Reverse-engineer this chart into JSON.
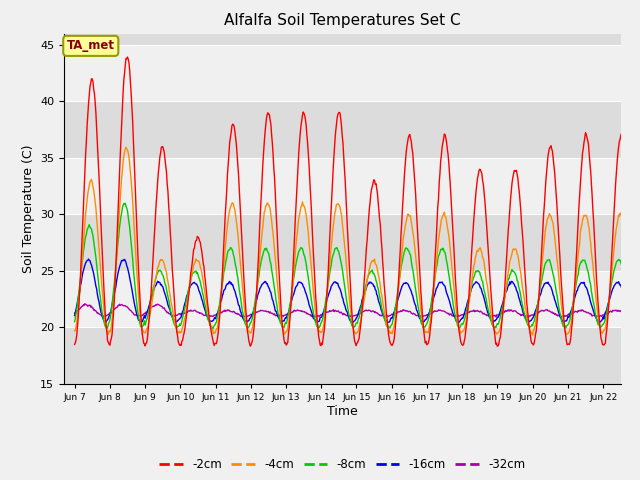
{
  "title": "Alfalfa Soil Temperatures Set C",
  "xlabel": "Time",
  "ylabel": "Soil Temperature (C)",
  "ylim": [
    15,
    46
  ],
  "yticks": [
    15,
    20,
    25,
    30,
    35,
    40,
    45
  ],
  "legend_label": "TA_met",
  "legend_box_color": "#FFFF99",
  "legend_box_edge": "#999900",
  "bg_color": "#F0F0F0",
  "plot_bg_color": "#F0F0F0",
  "band_color_dark": "#DCDCDC",
  "band_color_light": "#F0F0F0",
  "grid_color": "#FFFFFF",
  "line_colors": {
    "-2cm": "#FF0000",
    "-4cm": "#FF8C00",
    "-8cm": "#00CC00",
    "-16cm": "#0000EE",
    "-32cm": "#AA00AA"
  },
  "xtick_labels": [
    "Jun 7",
    "Jun 8",
    "Jun 9",
    "Jun 10",
    "Jun 11",
    "Jun 12",
    "Jun 13",
    "Jun 14",
    "Jun 15",
    "Jun 16",
    "Jun 17",
    "Jun 18",
    "Jun 19",
    "Jun 20",
    "Jun 21",
    "Jun 22"
  ],
  "n_days": 16,
  "pts_per_day": 48,
  "peaks_2cm": [
    42,
    44,
    36,
    28,
    38,
    39,
    39,
    39,
    33,
    37,
    37,
    34,
    34,
    36,
    37,
    37
  ],
  "peaks_4cm": [
    33,
    36,
    26,
    26,
    31,
    31,
    31,
    31,
    26,
    30,
    30,
    27,
    27,
    30,
    30,
    30
  ],
  "peaks_8cm": [
    29,
    31,
    25,
    25,
    27,
    27,
    27,
    27,
    25,
    27,
    27,
    25,
    25,
    26,
    26,
    26
  ],
  "peaks_16cm": [
    26,
    26,
    24,
    24,
    24,
    24,
    24,
    24,
    24,
    24,
    24,
    24,
    24,
    24,
    24,
    24
  ],
  "peaks_32cm": [
    22,
    22,
    22,
    21.5,
    21.5,
    21.5,
    21.5,
    21.5,
    21.5,
    21.5,
    21.5,
    21.5,
    21.5,
    21.5,
    21.5,
    21.5
  ],
  "valley_2cm": 18.5,
  "valley_4cm": 19.5,
  "valley_8cm": 20.0,
  "valley_16cm": 20.5,
  "valley_32cm": 21.0,
  "phase_2cm": -1.5708,
  "phase_4cm": -1.42,
  "phase_8cm": -1.1,
  "phase_16cm": -0.9,
  "phase_32cm": -0.6
}
